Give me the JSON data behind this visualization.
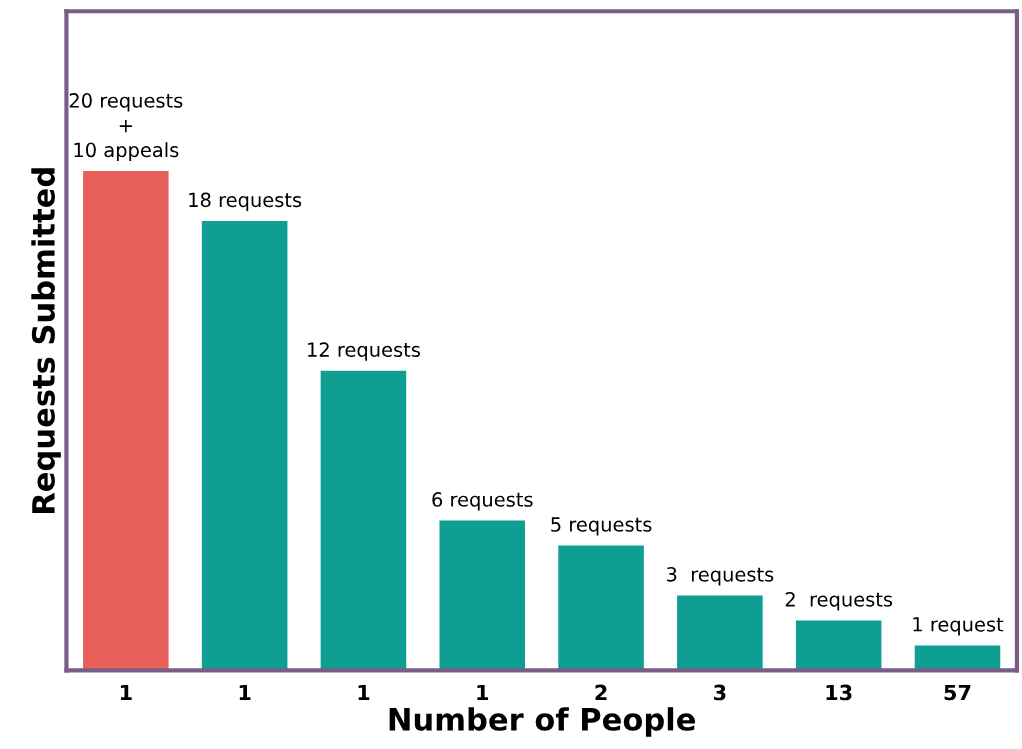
{
  "chart_data": {
    "type": "bar",
    "xlabel": "Number of People",
    "ylabel": "Requests Submitted",
    "categories": [
      "1",
      "1",
      "1",
      "1",
      "2",
      "3",
      "13",
      "57"
    ],
    "values": [
      20,
      18,
      12,
      6,
      5,
      3,
      2,
      1
    ],
    "colors": [
      "#e8605a",
      "#0e9e92",
      "#0e9e92",
      "#0e9e92",
      "#0e9e92",
      "#0e9e92",
      "#0e9e92",
      "#0e9e92"
    ],
    "value_labels": [
      "20 requests\n+\n10 appeals",
      "18 requests",
      "12 requests",
      "6 requests",
      "5 requests",
      "3  requests",
      "2  requests",
      "1 request"
    ],
    "grid": false,
    "legend": false
  }
}
